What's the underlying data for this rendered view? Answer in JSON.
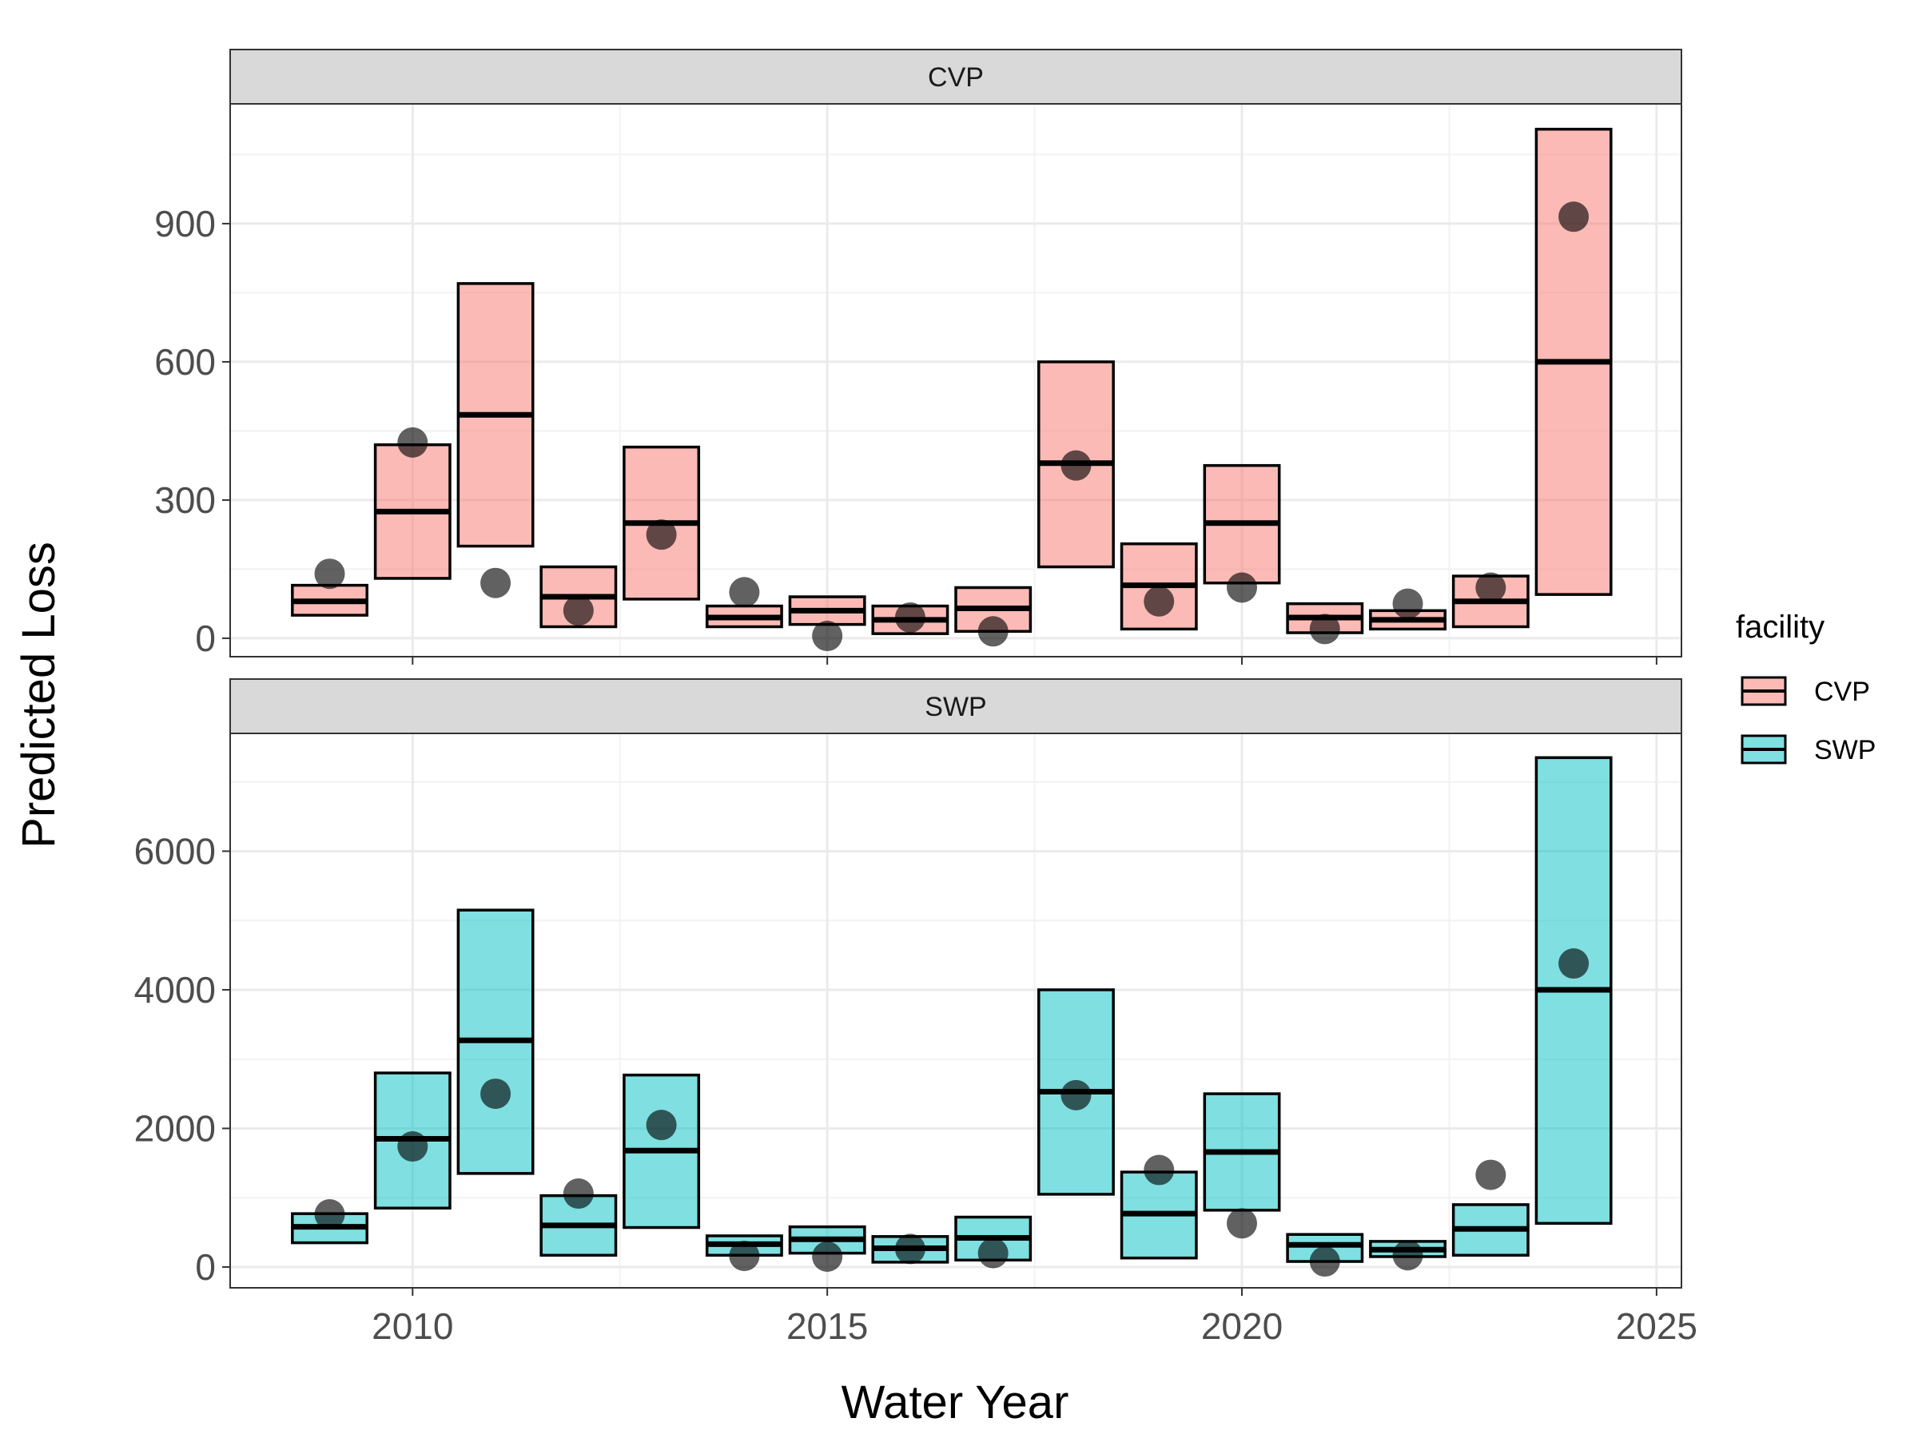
{
  "chart_data": {
    "type": "bar",
    "xlabel": "Water Year",
    "ylabel": "Predicted Loss",
    "x_ticks": [
      2010,
      2015,
      2020,
      2025
    ],
    "xlim": [
      2007.8,
      2025.3
    ],
    "grid": true,
    "legend": {
      "title": "facility",
      "placement": "right",
      "entries": [
        {
          "label": "CVP",
          "color": "#F8766D"
        },
        {
          "label": "SWP",
          "color": "#00BFC4"
        }
      ]
    },
    "panels": [
      {
        "strip": "CVP",
        "fill": "#F8766D",
        "ylim": [
          -40,
          1160
        ],
        "y_ticks": [
          0,
          300,
          600,
          900
        ],
        "y_tick_labels": [
          "0",
          "300",
          "600",
          "900"
        ],
        "years": [
          2009,
          2010,
          2011,
          2012,
          2013,
          2014,
          2015,
          2016,
          2017,
          2018,
          2019,
          2020,
          2021,
          2022,
          2023,
          2024
        ],
        "lower": [
          50,
          130,
          200,
          25,
          85,
          25,
          30,
          10,
          15,
          155,
          20,
          120,
          12,
          20,
          25,
          95
        ],
        "median": [
          80,
          275,
          485,
          90,
          250,
          45,
          60,
          40,
          65,
          380,
          115,
          250,
          45,
          40,
          80,
          600
        ],
        "upper": [
          115,
          420,
          770,
          155,
          415,
          70,
          90,
          70,
          110,
          600,
          205,
          375,
          75,
          60,
          135,
          1105
        ],
        "observed": [
          140,
          425,
          120,
          60,
          225,
          100,
          5,
          45,
          15,
          375,
          80,
          110,
          20,
          75,
          110,
          915
        ]
      },
      {
        "strip": "SWP",
        "fill": "#00BFC4",
        "ylim": [
          -300,
          7700
        ],
        "y_ticks": [
          0,
          2000,
          4000,
          6000
        ],
        "y_tick_labels": [
          "0",
          "2000",
          "4000",
          "6000"
        ],
        "years": [
          2009,
          2010,
          2011,
          2012,
          2013,
          2014,
          2015,
          2016,
          2017,
          2018,
          2019,
          2020,
          2021,
          2022,
          2023,
          2024
        ],
        "lower": [
          350,
          850,
          1350,
          170,
          570,
          170,
          200,
          70,
          100,
          1050,
          130,
          820,
          80,
          150,
          170,
          630
        ],
        "median": [
          580,
          1850,
          3270,
          600,
          1680,
          330,
          400,
          270,
          420,
          2530,
          770,
          1660,
          320,
          250,
          550,
          4000
        ],
        "upper": [
          770,
          2800,
          5150,
          1030,
          2770,
          450,
          580,
          440,
          720,
          4000,
          1370,
          2500,
          470,
          370,
          900,
          7350
        ],
        "observed": [
          760,
          1740,
          2500,
          1060,
          2050,
          160,
          150,
          260,
          200,
          2480,
          1400,
          630,
          80,
          170,
          1330,
          4380
        ]
      }
    ]
  }
}
